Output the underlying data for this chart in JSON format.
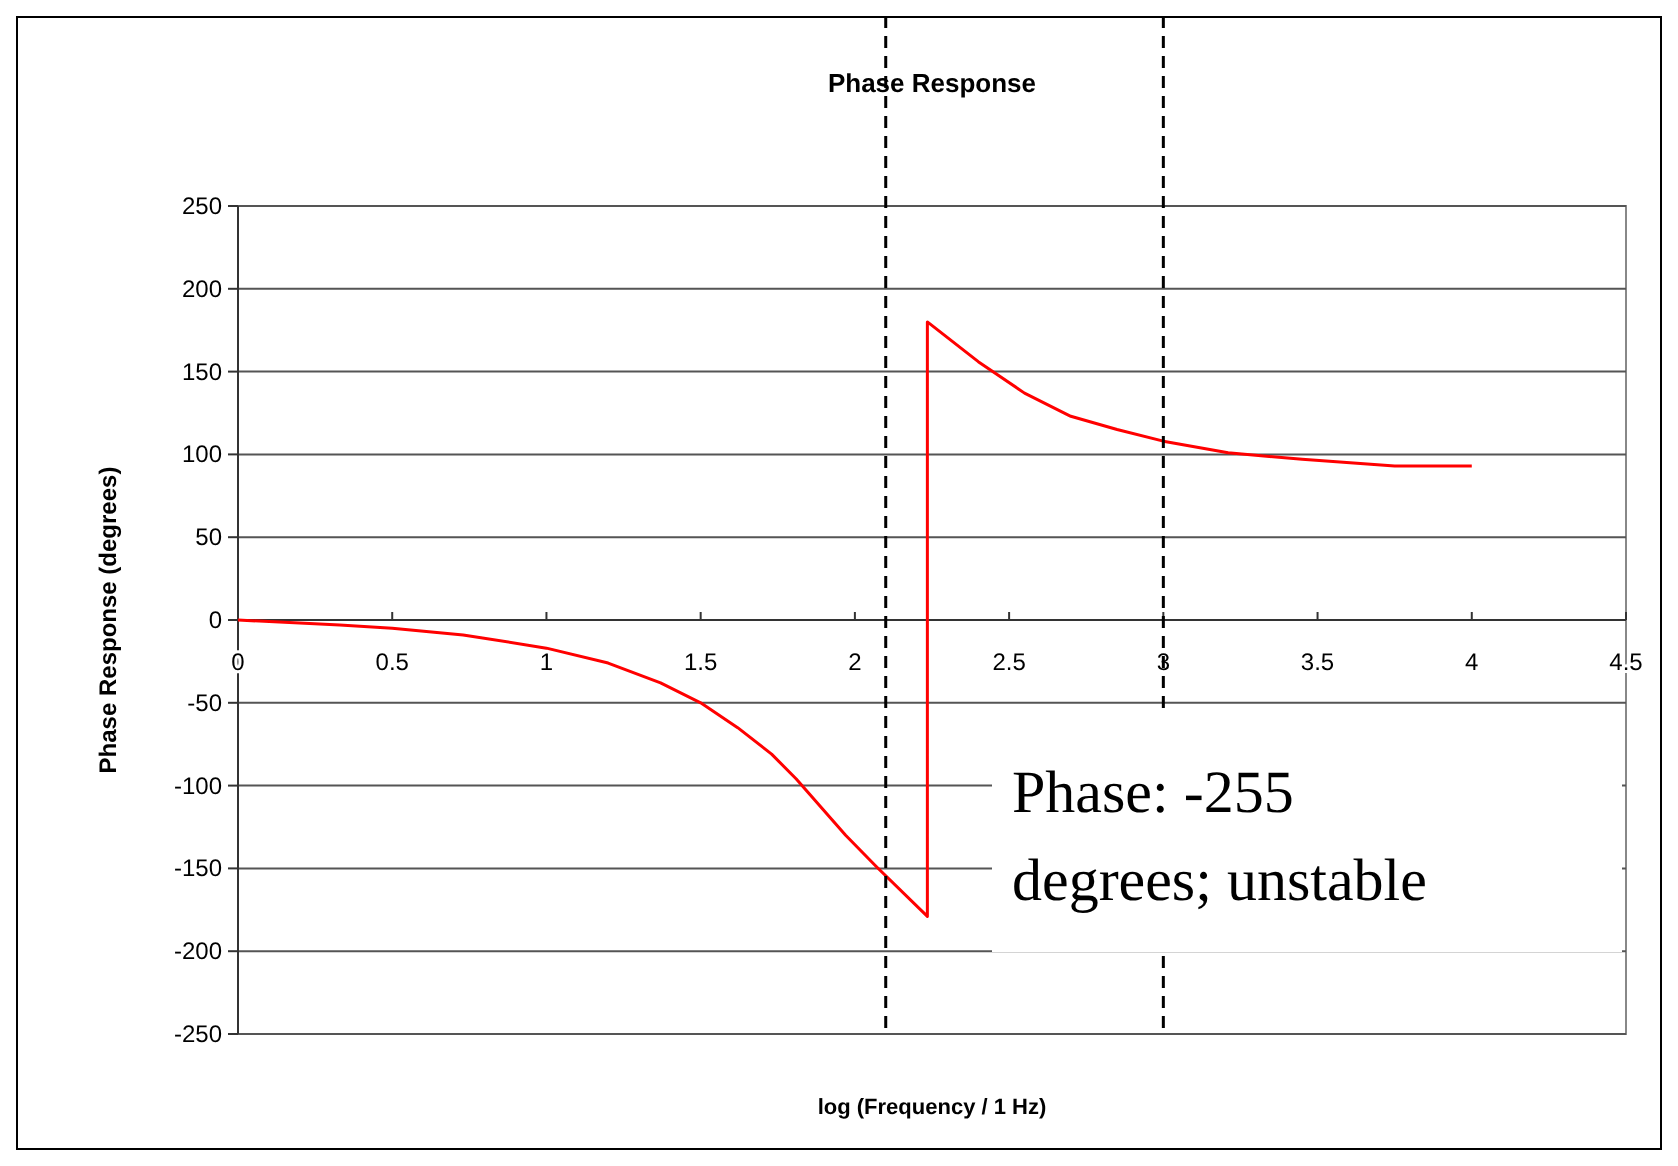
{
  "chart_data": {
    "type": "line",
    "title": "Phase Response",
    "xlabel": "log (Frequency / 1 Hz)",
    "ylabel": "Phase Response (degrees)",
    "series": [
      {
        "color": "#ff0000",
        "x": [
          0,
          0.33,
          0.5,
          0.73,
          1.0,
          1.2,
          1.37,
          1.5,
          1.62,
          1.73,
          1.81,
          1.97,
          2.07,
          2.235,
          2.235,
          2.4,
          2.55,
          2.7,
          2.85,
          3.0,
          3.21,
          3.45,
          3.75,
          4.0
        ],
        "values": [
          0,
          -3,
          -5,
          -9,
          -17,
          -26,
          -38,
          -50,
          -65,
          -81,
          -96,
          -130,
          -149,
          -179,
          180,
          156,
          137,
          123,
          115,
          108,
          101,
          97,
          93,
          93
        ]
      }
    ],
    "xlim": [
      0,
      4.5
    ],
    "xticks": [
      0,
      0.5,
      1,
      1.5,
      2,
      2.5,
      3,
      3.5,
      4,
      4.5
    ],
    "ylim": [
      -250,
      250
    ],
    "yticks": [
      -250,
      -200,
      -150,
      -100,
      -50,
      0,
      50,
      100,
      150,
      200,
      250
    ],
    "grid": "y",
    "marker": "none",
    "line_style": "solid",
    "ref_lines": [
      {
        "axis": "x",
        "value": 2.1,
        "color": "#000000",
        "line_style": "dashed"
      },
      {
        "axis": "x",
        "value": 3,
        "color": "#000000",
        "line_style": "dashed"
      }
    ],
    "annotations": [
      "Phase: -255 degrees; unstable"
    ]
  }
}
